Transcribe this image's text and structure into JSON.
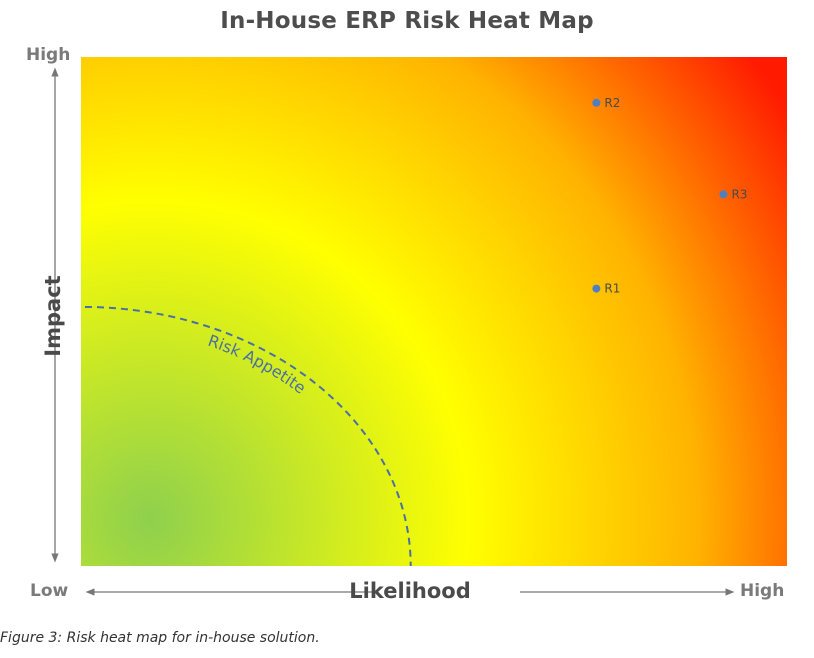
{
  "chart_data": {
    "type": "scatter",
    "title": "In-House ERP Risk Heat Map",
    "xlabel": "Likelihood",
    "ylabel": "Impact",
    "x_axis_ends": {
      "low": "Low",
      "high": "High"
    },
    "y_axis_ends": {
      "high": "High"
    },
    "xlim": [
      0,
      1
    ],
    "ylim": [
      0,
      1
    ],
    "grid": false,
    "points": [
      {
        "label": "R2",
        "x": 0.73,
        "y": 0.91
      },
      {
        "label": "R3",
        "x": 0.91,
        "y": 0.73
      },
      {
        "label": "R1",
        "x": 0.73,
        "y": 0.545
      }
    ],
    "annotation": {
      "label": "Risk Appetite",
      "radius": 0.45
    },
    "colors": {
      "low": "#8ed04e",
      "mid": "#ffff00",
      "high_mid": "#ffb300",
      "high": "#ff1a00",
      "point": "#4f7fc0",
      "appetite_line": "#4a6fa5"
    }
  },
  "caption": "Figure 3: Risk heat map for in-house solution."
}
